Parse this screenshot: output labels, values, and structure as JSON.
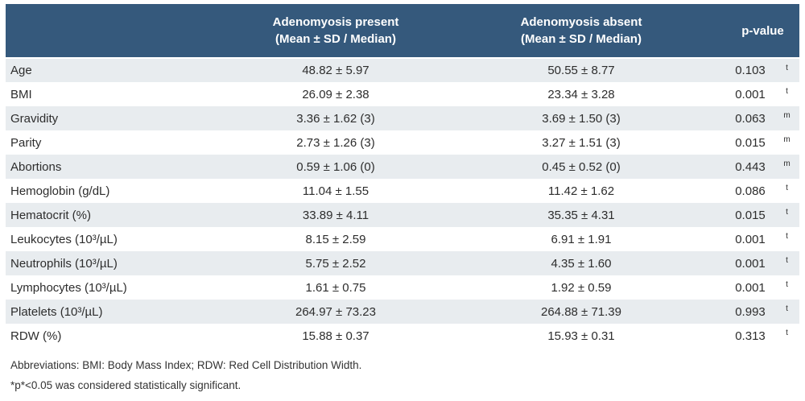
{
  "colors": {
    "header_bg": "#35597C",
    "header_text": "#FFFFFF",
    "row_stripe": "#E8ECEF",
    "row_white": "#FFFFFF",
    "body_text": "#2D2D2D"
  },
  "table": {
    "header": {
      "parameter": "",
      "present": {
        "title": "Adenomyosis present",
        "subtitle": "(Mean ± SD / Median)"
      },
      "absent": {
        "title": "Adenomyosis absent",
        "subtitle": "(Mean ± SD / Median)"
      },
      "pvalue": "p-value"
    },
    "rows": [
      {
        "label": "Age",
        "present": "48.82 ± 5.97",
        "absent": "50.55 ± 8.77",
        "p": "0.103",
        "test": "t"
      },
      {
        "label": "BMI",
        "present": "26.09 ± 2.38",
        "absent": "23.34 ± 3.28",
        "p": "0.001",
        "test": "t"
      },
      {
        "label": "Gravidity",
        "present": "3.36 ± 1.62 (3)",
        "absent": "3.69 ± 1.50 (3)",
        "p": "0.063",
        "test": "m"
      },
      {
        "label": "Parity",
        "present": "2.73 ± 1.26 (3)",
        "absent": "3.27 ± 1.51 (3)",
        "p": "0.015",
        "test": "m"
      },
      {
        "label": "Abortions",
        "present": "0.59 ± 1.06 (0)",
        "absent": "0.45 ± 0.52 (0)",
        "p": "0.443",
        "test": "m"
      },
      {
        "label": "Hemoglobin (g/dL)",
        "present": "11.04 ± 1.55",
        "absent": "11.42 ± 1.62",
        "p": "0.086",
        "test": "t"
      },
      {
        "label": "Hematocrit (%)",
        "present": "33.89 ± 4.11",
        "absent": "35.35 ± 4.31",
        "p": "0.015",
        "test": "t"
      },
      {
        "label": "Leukocytes (10³/µL)",
        "present": "8.15 ± 2.59",
        "absent": "6.91 ± 1.91",
        "p": "0.001",
        "test": "t"
      },
      {
        "label": "Neutrophils (10³/µL)",
        "present": "5.75 ± 2.52",
        "absent": "4.35 ± 1.60",
        "p": "0.001",
        "test": "t"
      },
      {
        "label": "Lymphocytes (10³/µL)",
        "present": "1.61 ± 0.75",
        "absent": "1.92 ± 0.59",
        "p": "0.001",
        "test": "t"
      },
      {
        "label": "Platelets (10³/µL)",
        "present": "264.97 ± 73.23",
        "absent": "264.88 ± 71.39",
        "p": "0.993",
        "test": "t"
      },
      {
        "label": "RDW (%)",
        "present": "15.88 ± 0.37",
        "absent": "15.93 ± 0.31",
        "p": "0.313",
        "test": "t"
      }
    ],
    "footnotes": [
      "Abbreviations: BMI: Body Mass Index; RDW: Red Cell Distribution Width.",
      "*p*<0.05 was considered statistically significant."
    ]
  }
}
